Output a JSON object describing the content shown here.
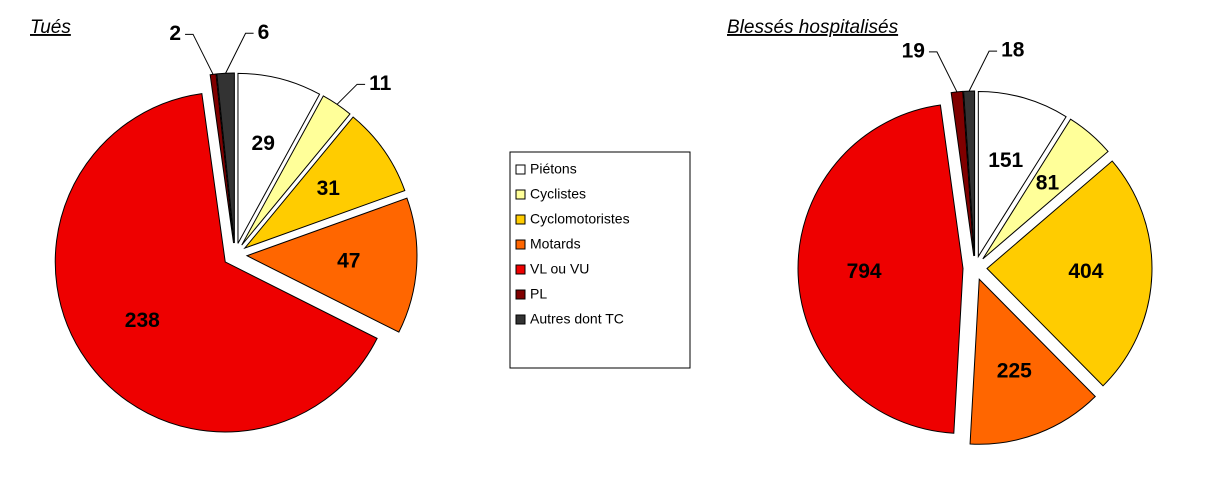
{
  "legend": {
    "labels": [
      "Piétons",
      "Cyclistes",
      "Cyclomotoristes",
      "Motards",
      "VL ou VU",
      "PL",
      "Autres dont TC"
    ],
    "colors": [
      "#ffffff",
      "#ffff99",
      "#ffcc00",
      "#ff6600",
      "#ee0000",
      "#800000",
      "#333333"
    ]
  },
  "chart_data": [
    {
      "type": "pie",
      "title": "Tués",
      "values": [
        29,
        11,
        31,
        47,
        238,
        2,
        6
      ]
    },
    {
      "type": "pie",
      "title": "Blessés hospitalisés",
      "values": [
        151,
        81,
        404,
        225,
        794,
        19,
        18
      ]
    }
  ]
}
